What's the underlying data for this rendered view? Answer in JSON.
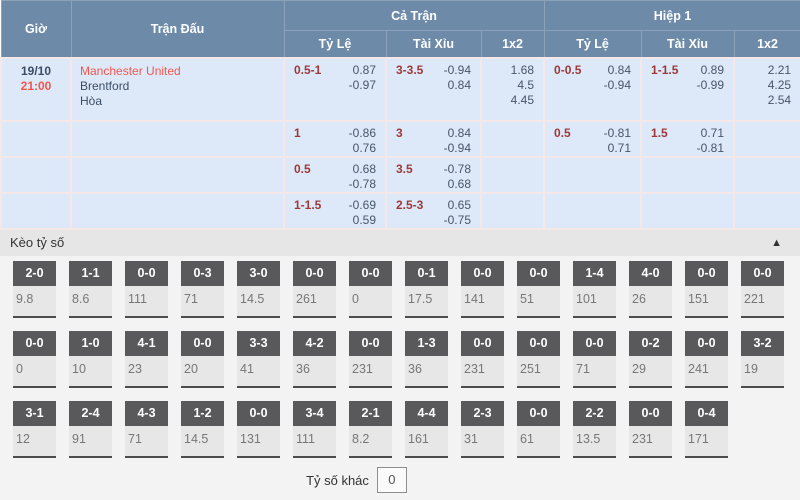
{
  "table": {
    "header": {
      "time": "Giờ",
      "match": "Trận Đấu",
      "full_match": "Cả Trận",
      "first_half": "Hiệp 1",
      "handicap": "Tỷ Lệ",
      "over_under": "Tài Xỉu",
      "one_x_two": "1x2"
    },
    "match": {
      "date": "19/10",
      "time": "21:00",
      "home": "Manchester United",
      "away": "Brentford",
      "draw": "Hòa"
    },
    "odds_rows": [
      {
        "ft": {
          "hc_line": "0.5-1",
          "hc_odds": [
            "0.87",
            "-0.97"
          ],
          "ou_line": "3-3.5",
          "ou_odds": [
            "-0.94",
            "0.84"
          ],
          "x12": [
            "1.68",
            "4.5",
            "4.45"
          ]
        },
        "h1": {
          "hc_line": "0-0.5",
          "hc_odds": [
            "0.84",
            "-0.94"
          ],
          "ou_line": "1-1.5",
          "ou_odds": [
            "0.89",
            "-0.99"
          ],
          "x12": [
            "2.21",
            "4.25",
            "2.54"
          ]
        }
      },
      {
        "ft": {
          "hc_line": "1",
          "hc_odds": [
            "-0.86",
            "0.76"
          ],
          "ou_line": "3",
          "ou_odds": [
            "0.84",
            "-0.94"
          ],
          "x12": []
        },
        "h1": {
          "hc_line": "0.5",
          "hc_odds": [
            "-0.81",
            "0.71"
          ],
          "ou_line": "1.5",
          "ou_odds": [
            "0.71",
            "-0.81"
          ],
          "x12": []
        }
      },
      {
        "ft": {
          "hc_line": "0.5",
          "hc_odds": [
            "0.68",
            "-0.78"
          ],
          "ou_line": "3.5",
          "ou_odds": [
            "-0.78",
            "0.68"
          ],
          "x12": []
        },
        "h1": {
          "hc_line": "",
          "hc_odds": [],
          "ou_line": "",
          "ou_odds": [],
          "x12": []
        }
      },
      {
        "ft": {
          "hc_line": "1-1.5",
          "hc_odds": [
            "-0.69",
            "0.59"
          ],
          "ou_line": "2.5-3",
          "ou_odds": [
            "0.65",
            "-0.75"
          ],
          "x12": []
        },
        "h1": {
          "hc_line": "",
          "hc_odds": [],
          "ou_line": "",
          "ou_odds": [],
          "x12": []
        }
      }
    ]
  },
  "score_section": {
    "title": "Kèo tỷ số",
    "collapse_icon": "▲",
    "rows": [
      [
        {
          "s": "2-0",
          "v": "9.8"
        },
        {
          "s": "1-1",
          "v": "8.6"
        },
        {
          "s": "0-0",
          "v": "111"
        },
        {
          "s": "0-3",
          "v": "71"
        },
        {
          "s": "3-0",
          "v": "14.5"
        },
        {
          "s": "0-0",
          "v": "261"
        },
        {
          "s": "0-0",
          "v": "0"
        },
        {
          "s": "0-1",
          "v": "17.5"
        },
        {
          "s": "0-0",
          "v": "141"
        },
        {
          "s": "0-0",
          "v": "51"
        },
        {
          "s": "1-4",
          "v": "101"
        },
        {
          "s": "4-0",
          "v": "26"
        },
        {
          "s": "0-0",
          "v": "151"
        },
        {
          "s": "0-0",
          "v": "221"
        }
      ],
      [
        {
          "s": "0-0",
          "v": "0"
        },
        {
          "s": "1-0",
          "v": "10"
        },
        {
          "s": "4-1",
          "v": "23"
        },
        {
          "s": "0-0",
          "v": "20"
        },
        {
          "s": "3-3",
          "v": "41"
        },
        {
          "s": "4-2",
          "v": "36"
        },
        {
          "s": "0-0",
          "v": "231"
        },
        {
          "s": "1-3",
          "v": "36"
        },
        {
          "s": "0-0",
          "v": "231"
        },
        {
          "s": "0-0",
          "v": "251"
        },
        {
          "s": "0-0",
          "v": "71"
        },
        {
          "s": "0-2",
          "v": "29"
        },
        {
          "s": "0-0",
          "v": "241"
        },
        {
          "s": "3-2",
          "v": "19"
        }
      ],
      [
        {
          "s": "3-1",
          "v": "12"
        },
        {
          "s": "2-4",
          "v": "91"
        },
        {
          "s": "4-3",
          "v": "71"
        },
        {
          "s": "1-2",
          "v": "14.5"
        },
        {
          "s": "0-0",
          "v": "131"
        },
        {
          "s": "3-4",
          "v": "111"
        },
        {
          "s": "2-1",
          "v": "8.2"
        },
        {
          "s": "4-4",
          "v": "161"
        },
        {
          "s": "2-3",
          "v": "31"
        },
        {
          "s": "0-0",
          "v": "61"
        },
        {
          "s": "2-2",
          "v": "13.5"
        },
        {
          "s": "0-0",
          "v": "231"
        },
        {
          "s": "0-4",
          "v": "171"
        }
      ]
    ],
    "other_score_label": "Tỷ số khác",
    "other_score_value": "0"
  },
  "colors": {
    "header_bg": "#6d8ba9",
    "row_bg": "#dde9f8",
    "accent_red": "#f4564e",
    "line_red": "#9e3939",
    "odds_text": "#47566a",
    "chip_bg": "#59595b"
  }
}
